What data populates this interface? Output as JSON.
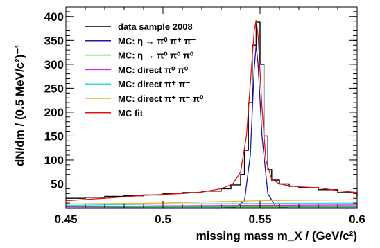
{
  "chart_data": {
    "type": "line",
    "xlabel": "missing mass  m_X / (GeV/c²)",
    "ylabel": "dN/dm / (0.5 MeV/c²)⁻¹",
    "xlim": [
      0.45,
      0.6
    ],
    "ylim": [
      0,
      420
    ],
    "x_ticks": [
      "0.45",
      "0.5",
      "0.55",
      "0.6"
    ],
    "y_ticks": [
      "50",
      "100",
      "150",
      "200",
      "250",
      "300",
      "350",
      "400"
    ],
    "legend_position": "top-left",
    "series": [
      {
        "name": "data sample 2008",
        "color": "#000000",
        "style": "histogram",
        "x": [
          0.45,
          0.46,
          0.47,
          0.48,
          0.49,
          0.5,
          0.51,
          0.52,
          0.53,
          0.535,
          0.54,
          0.542,
          0.544,
          0.546,
          0.548,
          0.55,
          0.552,
          0.554,
          0.556,
          0.56,
          0.565,
          0.57,
          0.58,
          0.59,
          0.6
        ],
        "values": [
          20,
          22,
          24,
          25,
          27,
          30,
          32,
          35,
          40,
          48,
          70,
          120,
          220,
          340,
          388,
          300,
          150,
          80,
          58,
          50,
          45,
          42,
          38,
          32,
          24
        ]
      },
      {
        "name": "MC: η → π⁰ π⁺ π⁻",
        "color": "#1a1aa6",
        "style": "line",
        "x": [
          0.45,
          0.53,
          0.538,
          0.542,
          0.545,
          0.547,
          0.548,
          0.549,
          0.551,
          0.554,
          0.558,
          0.565,
          0.6
        ],
        "values": [
          0,
          0,
          2,
          15,
          110,
          290,
          340,
          300,
          150,
          30,
          3,
          0,
          0
        ]
      },
      {
        "name": "MC: η → π⁰ π⁰ π⁰",
        "color": "#2fd02f",
        "style": "line",
        "x": [
          0.45,
          0.5,
          0.55,
          0.6
        ],
        "values": [
          1,
          2,
          2,
          2
        ]
      },
      {
        "name": "MC: direct  π⁰ π⁰",
        "color": "#e020e0",
        "style": "line",
        "x": [
          0.45,
          0.5,
          0.55,
          0.6
        ],
        "values": [
          2,
          4,
          5,
          6
        ]
      },
      {
        "name": "MC: direct  π⁺ π⁻",
        "color": "#30d8e0",
        "style": "line",
        "x": [
          0.45,
          0.5,
          0.55,
          0.6
        ],
        "values": [
          5,
          8,
          9,
          10
        ]
      },
      {
        "name": "MC: direct  π⁺ π⁻ π⁰",
        "color": "#f0b030",
        "style": "line",
        "x": [
          0.45,
          0.5,
          0.52,
          0.55,
          0.57,
          0.6
        ],
        "values": [
          8,
          10,
          12,
          15,
          16,
          17
        ]
      },
      {
        "name": "MC fit",
        "color": "#e01010",
        "style": "line",
        "x": [
          0.45,
          0.47,
          0.49,
          0.51,
          0.52,
          0.53,
          0.536,
          0.54,
          0.543,
          0.545,
          0.547,
          0.548,
          0.549,
          0.551,
          0.553,
          0.556,
          0.56,
          0.565,
          0.57,
          0.58,
          0.59,
          0.6
        ],
        "values": [
          15,
          20,
          26,
          30,
          33,
          40,
          50,
          75,
          150,
          260,
          370,
          392,
          360,
          210,
          100,
          60,
          50,
          46,
          44,
          42,
          36,
          32
        ]
      }
    ]
  }
}
